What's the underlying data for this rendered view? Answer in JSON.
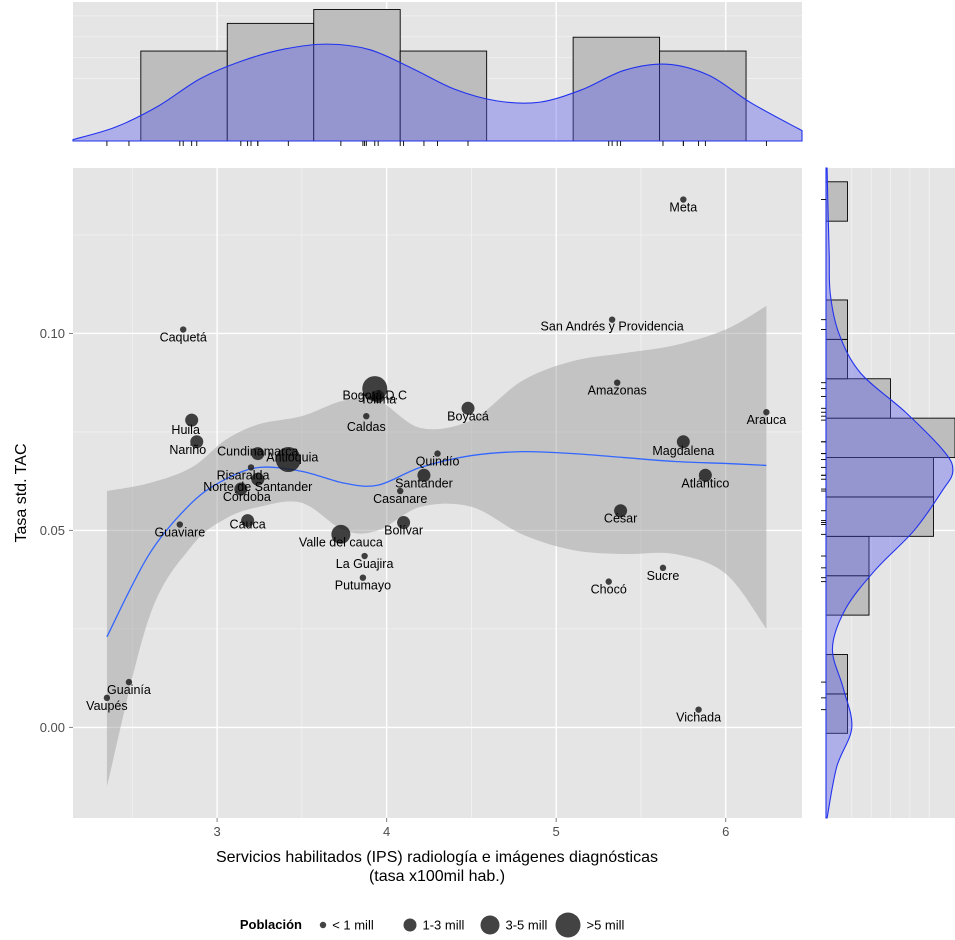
{
  "chart_data": {
    "type": "scatter",
    "xlabel_lines": [
      "Servicios habilitados (IPS) radiología e imágenes diagnósticas",
      "(tasa x100mil hab.)"
    ],
    "ylabel": "Tasa std. TAC",
    "xlim": [
      2.15,
      6.45
    ],
    "ylim": [
      -0.023,
      0.142
    ],
    "x_ticks": [
      3,
      4,
      5,
      6
    ],
    "y_ticks": [
      0.0,
      0.05,
      0.1
    ],
    "x_tick_labels": [
      "3",
      "4",
      "5",
      "6"
    ],
    "y_tick_labels": [
      "0.00",
      "0.05",
      "0.10"
    ],
    "grid": true,
    "colors": {
      "panel": "#e5e5e5",
      "grid": "#ffffff",
      "point": "#1a1a1a",
      "smooth_line": "#3366ff",
      "ribbon": "#999999",
      "hist_fill": "#bdbdbd",
      "density_fill": "#5555ee"
    },
    "points": [
      {
        "name": "Meta",
        "x": 5.75,
        "y": 0.134,
        "size": 1
      },
      {
        "name": "San Andrés y Providencia",
        "x": 5.33,
        "y": 0.1035,
        "size": 1
      },
      {
        "name": "Caquetá",
        "x": 2.8,
        "y": 0.101,
        "size": 1
      },
      {
        "name": "Bogotá D.C",
        "x": 3.93,
        "y": 0.086,
        "size": 4
      },
      {
        "name": "Amazonas",
        "x": 5.36,
        "y": 0.0875,
        "size": 1
      },
      {
        "name": "Tolima",
        "x": 3.95,
        "y": 0.084,
        "size": 2
      },
      {
        "name": "Caldas",
        "x": 3.88,
        "y": 0.079,
        "size": 1
      },
      {
        "name": "Boyacá",
        "x": 4.48,
        "y": 0.081,
        "size": 2
      },
      {
        "name": "Arauca",
        "x": 6.24,
        "y": 0.08,
        "size": 1
      },
      {
        "name": "Huila",
        "x": 2.85,
        "y": 0.078,
        "size": 2
      },
      {
        "name": "Nariño",
        "x": 2.88,
        "y": 0.0725,
        "size": 2
      },
      {
        "name": "Magdalena",
        "x": 5.75,
        "y": 0.0725,
        "size": 2
      },
      {
        "name": "Quindío",
        "x": 4.3,
        "y": 0.0695,
        "size": 1
      },
      {
        "name": "Cundinamarca",
        "x": 3.24,
        "y": 0.0695,
        "size": 2
      },
      {
        "name": "Antioquia",
        "x": 3.42,
        "y": 0.068,
        "size": 4
      },
      {
        "name": "Risaralda",
        "x": 3.2,
        "y": 0.066,
        "size": 1
      },
      {
        "name": "Santander",
        "x": 4.22,
        "y": 0.064,
        "size": 2
      },
      {
        "name": "Atlántico",
        "x": 5.88,
        "y": 0.064,
        "size": 2
      },
      {
        "name": "Norte de Santander",
        "x": 3.24,
        "y": 0.063,
        "size": 2
      },
      {
        "name": "Córdoba",
        "x": 3.14,
        "y": 0.0605,
        "size": 2
      },
      {
        "name": "Casanare",
        "x": 4.08,
        "y": 0.06,
        "size": 1
      },
      {
        "name": "César",
        "x": 5.38,
        "y": 0.055,
        "size": 2
      },
      {
        "name": "Cauca",
        "x": 3.18,
        "y": 0.0525,
        "size": 2
      },
      {
        "name": "Guaviare",
        "x": 2.78,
        "y": 0.0515,
        "size": 1
      },
      {
        "name": "Bolívar",
        "x": 4.1,
        "y": 0.052,
        "size": 2
      },
      {
        "name": "Valle del cauca",
        "x": 3.73,
        "y": 0.049,
        "size": 3
      },
      {
        "name": "La Guajira",
        "x": 3.87,
        "y": 0.0435,
        "size": 1
      },
      {
        "name": "Sucre",
        "x": 5.63,
        "y": 0.0405,
        "size": 1
      },
      {
        "name": "Putumayo",
        "x": 3.86,
        "y": 0.038,
        "size": 1
      },
      {
        "name": "Chocó",
        "x": 5.31,
        "y": 0.037,
        "size": 1
      },
      {
        "name": "Guainía",
        "x": 2.48,
        "y": 0.0115,
        "size": 1
      },
      {
        "name": "Vaupés",
        "x": 2.35,
        "y": 0.0075,
        "size": 1
      },
      {
        "name": "Vichada",
        "x": 5.84,
        "y": 0.0045,
        "size": 1
      }
    ],
    "smooth": {
      "x": [
        2.35,
        2.6,
        2.85,
        3.05,
        3.25,
        3.5,
        3.75,
        3.95,
        4.2,
        4.5,
        4.8,
        5.1,
        5.4,
        5.7,
        6.0,
        6.24
      ],
      "y": [
        0.023,
        0.044,
        0.057,
        0.063,
        0.066,
        0.065,
        0.062,
        0.0615,
        0.066,
        0.069,
        0.07,
        0.0695,
        0.0685,
        0.0675,
        0.067,
        0.0665
      ],
      "lower": [
        -0.015,
        0.028,
        0.046,
        0.053,
        0.056,
        0.057,
        0.05,
        0.05,
        0.056,
        0.056,
        0.049,
        0.045,
        0.044,
        0.044,
        0.039,
        0.025
      ],
      "upper": [
        0.06,
        0.062,
        0.066,
        0.073,
        0.077,
        0.079,
        0.083,
        0.083,
        0.076,
        0.078,
        0.088,
        0.093,
        0.095,
        0.097,
        0.101,
        0.107
      ]
    },
    "x_histogram": {
      "bins": [
        [
          2.55,
          3.06,
          13
        ],
        [
          3.06,
          3.57,
          17
        ],
        [
          3.57,
          4.08,
          19
        ],
        [
          4.08,
          4.59,
          13
        ],
        [
          4.59,
          5.1,
          0
        ],
        [
          5.1,
          5.61,
          15
        ],
        [
          5.61,
          6.12,
          13
        ]
      ],
      "density_x": [
        2.15,
        2.4,
        2.65,
        2.9,
        3.15,
        3.4,
        3.65,
        3.9,
        4.15,
        4.4,
        4.65,
        4.9,
        5.15,
        5.4,
        5.65,
        5.9,
        6.15,
        6.45
      ],
      "density_y": [
        0.2,
        2.0,
        5.0,
        9.0,
        11.6,
        13.3,
        14.0,
        13.2,
        10.5,
        7.5,
        5.8,
        5.6,
        7.4,
        10.2,
        11.1,
        9.5,
        5.5,
        1.5
      ],
      "rug": [
        2.35,
        2.48,
        2.78,
        2.8,
        2.85,
        2.88,
        3.14,
        3.18,
        3.2,
        3.24,
        3.24,
        3.42,
        3.73,
        3.86,
        3.87,
        3.88,
        3.93,
        3.95,
        4.08,
        4.1,
        4.22,
        4.3,
        4.48,
        5.31,
        5.33,
        5.36,
        5.38,
        5.63,
        5.75,
        5.75,
        5.84,
        5.88,
        6.24
      ]
    },
    "y_histogram": {
      "bins": [
        [
          -0.0015,
          0.0085,
          1
        ],
        [
          0.0085,
          0.0185,
          1
        ],
        [
          0.0185,
          0.0285,
          0
        ],
        [
          0.0285,
          0.0385,
          2
        ],
        [
          0.0385,
          0.0485,
          2
        ],
        [
          0.0485,
          0.0585,
          5
        ],
        [
          0.0585,
          0.0685,
          5
        ],
        [
          0.0685,
          0.0785,
          6
        ],
        [
          0.0785,
          0.0885,
          3
        ],
        [
          0.0885,
          0.0985,
          1
        ],
        [
          0.0985,
          0.1085,
          1
        ],
        [
          0.1085,
          0.1185,
          0
        ],
        [
          0.1185,
          0.1285,
          0
        ],
        [
          0.1285,
          0.1385,
          1
        ]
      ],
      "density_y": [
        -0.023,
        -0.01,
        0.0,
        0.01,
        0.02,
        0.03,
        0.04,
        0.05,
        0.06,
        0.065,
        0.07,
        0.08,
        0.09,
        0.1,
        0.11,
        0.12,
        0.13,
        0.142
      ],
      "density_x": [
        0.05,
        0.5,
        1.2,
        0.8,
        0.3,
        0.9,
        2.3,
        4.1,
        5.4,
        5.9,
        5.5,
        3.7,
        1.6,
        0.6,
        0.2,
        0.15,
        0.1,
        0.05
      ],
      "rug": [
        0.0045,
        0.0075,
        0.0115,
        0.037,
        0.038,
        0.0405,
        0.0435,
        0.049,
        0.0515,
        0.052,
        0.0525,
        0.055,
        0.06,
        0.0605,
        0.063,
        0.064,
        0.064,
        0.066,
        0.068,
        0.0695,
        0.0695,
        0.0725,
        0.0725,
        0.078,
        0.079,
        0.08,
        0.081,
        0.084,
        0.086,
        0.0875,
        0.101,
        0.1035,
        0.134
      ]
    }
  },
  "legend": {
    "title": "Población",
    "items": [
      {
        "label": "< 1 mill",
        "size": 1
      },
      {
        "label": "1-3 mill",
        "size": 2
      },
      {
        "label": "3-5 mill",
        "size": 3
      },
      {
        "label": ">5 mill",
        "size": 4
      }
    ]
  }
}
